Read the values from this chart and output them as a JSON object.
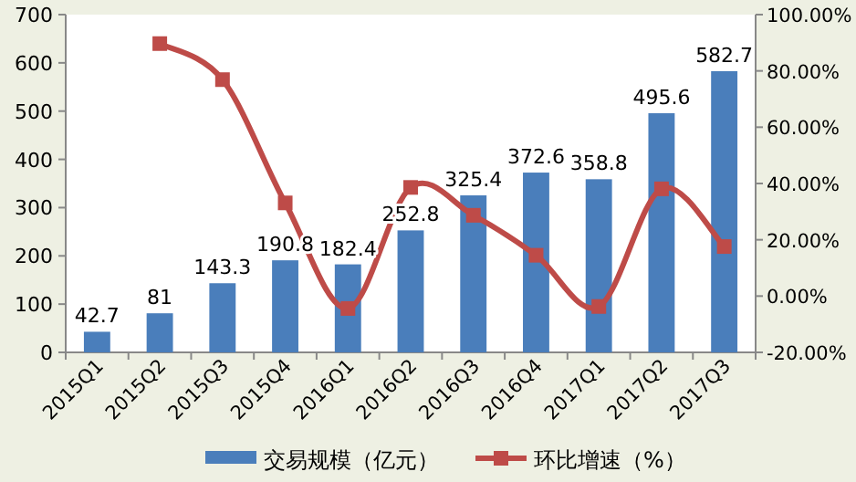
{
  "chart_data": {
    "type": "bar",
    "categories": [
      "2015Q1",
      "2015Q2",
      "2015Q3",
      "2015Q4",
      "2016Q1",
      "2016Q2",
      "2016Q3",
      "2016Q4",
      "2017Q1",
      "2017Q2",
      "2017Q3"
    ],
    "series": [
      {
        "name": "交易规模（亿元）",
        "color": "#4a7ebb",
        "values": [
          42.7,
          81,
          143.3,
          190.8,
          182.4,
          252.8,
          325.4,
          372.6,
          358.8,
          495.6,
          582.7
        ],
        "value_labels": [
          "42.7",
          "81",
          "143.3",
          "190.8",
          "182.4",
          "252.8",
          "325.4",
          "372.6",
          "358.8",
          "495.6",
          "582.7"
        ]
      },
      {
        "name": "环比增速（%）",
        "type": "line",
        "axis": "y2",
        "color": "#be4b48",
        "marker": "square",
        "line_style": "solid",
        "values": [
          null,
          89.7,
          76.9,
          33.1,
          -4.4,
          38.6,
          28.7,
          14.5,
          -3.7,
          38.1,
          17.6
        ]
      }
    ],
    "ylim": [
      0,
      700
    ],
    "yticks": [
      0,
      100,
      200,
      300,
      400,
      500,
      600,
      700
    ],
    "y2lim": [
      -20,
      100
    ],
    "y2ticks": [
      {
        "value": -20,
        "label": "-20.00%"
      },
      {
        "value": 0,
        "label": "0.00%"
      },
      {
        "value": 20,
        "label": "20.00%"
      },
      {
        "value": 40,
        "label": "40.00%"
      },
      {
        "value": 60,
        "label": "60.00%"
      },
      {
        "value": 80,
        "label": "80.00%"
      },
      {
        "value": 100,
        "label": "100.00%"
      }
    ],
    "grid": false,
    "legend": "bottom"
  }
}
